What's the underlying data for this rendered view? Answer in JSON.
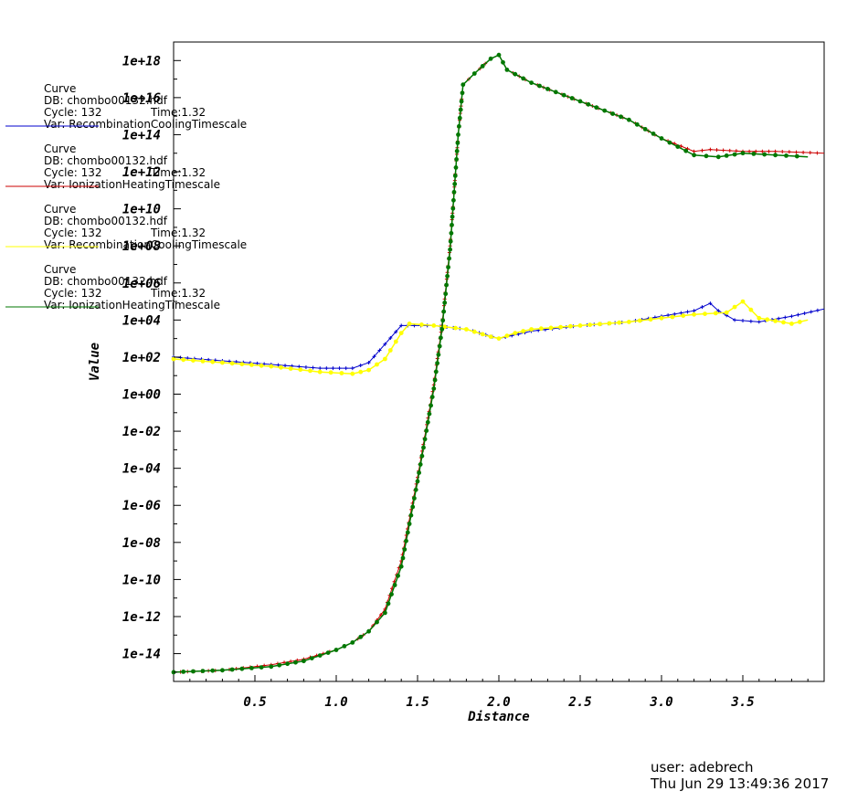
{
  "chart_data": {
    "type": "line",
    "xlabel": "Distance",
    "ylabel": "Value",
    "xlim": [
      0.0,
      4.0
    ],
    "ylim_log10": [
      -15.5,
      19.0
    ],
    "yscale": "log",
    "grid": false,
    "x_tick_labels": [
      "0.5",
      "1.0",
      "1.5",
      "2.0",
      "2.5",
      "3.0",
      "3.5"
    ],
    "y_tick_labels": [
      "1e+18",
      "1e+16",
      "1e+14",
      "1e+12",
      "1e+10",
      "1e+08",
      "1e+06",
      "1e+04",
      "1e+02",
      "1e+00",
      "1e-02",
      "1e-04",
      "1e-06",
      "1e-08",
      "1e-10",
      "1e-12",
      "1e-14"
    ],
    "series": [
      {
        "name": "RecombinationCoolingTimescale",
        "color": "#0000cc",
        "marker": "plus",
        "legend": {
          "title": "Curve",
          "db": "DB: chombo00132.hdf",
          "cycle": "Cycle: 132",
          "time": "Time:1.32",
          "var": "Var: RecombinationCoolingTimescale"
        },
        "x": [
          0.0,
          0.3,
          0.6,
          0.9,
          1.1,
          1.2,
          1.3,
          1.4,
          1.6,
          1.8,
          2.0,
          2.2,
          2.5,
          2.8,
          3.0,
          3.2,
          3.3,
          3.35,
          3.45,
          3.6,
          3.8,
          4.0
        ],
        "y_log10": [
          2.0,
          1.8,
          1.6,
          1.4,
          1.4,
          1.7,
          2.7,
          3.7,
          3.7,
          3.5,
          3.0,
          3.4,
          3.7,
          3.9,
          4.2,
          4.5,
          4.9,
          4.5,
          4.0,
          3.9,
          4.2,
          4.6
        ]
      },
      {
        "name": "IonizationHeatingTimescale",
        "color": "#cc0000",
        "marker": "plus",
        "legend": {
          "title": "Curve",
          "db": "DB: chombo00132.hdf",
          "cycle": "Cycle: 132",
          "time": "Time:1.32",
          "var": "Var: IonizationHeatingTimescale"
        },
        "x": [
          0.0,
          0.3,
          0.6,
          0.8,
          1.0,
          1.1,
          1.2,
          1.3,
          1.4,
          1.5,
          1.6,
          1.65,
          1.7,
          1.75,
          1.78,
          1.85,
          1.95,
          2.0,
          2.05,
          2.2,
          2.5,
          2.8,
          3.0,
          3.2,
          3.3,
          3.5,
          3.7,
          4.0
        ],
        "y_log10": [
          -15.0,
          -14.9,
          -14.6,
          -14.3,
          -13.8,
          -13.4,
          -12.8,
          -11.6,
          -9.0,
          -4.5,
          0.5,
          3.7,
          8.0,
          14.0,
          16.7,
          17.3,
          18.1,
          18.3,
          17.5,
          16.8,
          15.8,
          14.8,
          13.8,
          13.1,
          13.2,
          13.1,
          13.1,
          13.0
        ]
      },
      {
        "name": "RecombinationCoolingTimescale",
        "color": "#ffff00",
        "marker": "dot",
        "legend": {
          "title": "Curve",
          "db": "DB: chombo00132.hdf",
          "cycle": "Cycle: 132",
          "time": "Time:1.32",
          "var": "Var: RecombinationCoolingTimescale"
        },
        "x": [
          0.0,
          0.3,
          0.6,
          0.9,
          1.1,
          1.2,
          1.3,
          1.4,
          1.45,
          1.6,
          1.8,
          1.95,
          2.0,
          2.1,
          2.2,
          2.5,
          2.8,
          3.0,
          3.2,
          3.4,
          3.5,
          3.6,
          3.8,
          3.9
        ],
        "y_log10": [
          1.9,
          1.7,
          1.5,
          1.2,
          1.1,
          1.3,
          1.9,
          3.3,
          3.8,
          3.7,
          3.5,
          3.1,
          3.0,
          3.3,
          3.5,
          3.7,
          3.9,
          4.1,
          4.3,
          4.4,
          5.0,
          4.1,
          3.8,
          4.0
        ]
      },
      {
        "name": "IonizationHeatingTimescale",
        "color": "#007700",
        "marker": "dot",
        "legend": {
          "title": "Curve",
          "db": "DB: chombo00132.hdf",
          "cycle": "Cycle: 132",
          "time": "Time:1.32",
          "var": "Var: IonizationHeatingTimescale"
        },
        "x": [
          0.0,
          0.3,
          0.6,
          0.8,
          1.0,
          1.1,
          1.2,
          1.3,
          1.4,
          1.5,
          1.6,
          1.65,
          1.7,
          1.75,
          1.78,
          1.85,
          1.95,
          2.0,
          2.05,
          2.2,
          2.5,
          2.8,
          3.0,
          3.2,
          3.35,
          3.5,
          3.7,
          3.9
        ],
        "y_log10": [
          -15.0,
          -14.9,
          -14.7,
          -14.4,
          -13.8,
          -13.4,
          -12.8,
          -11.8,
          -9.3,
          -4.7,
          0.3,
          3.5,
          7.8,
          14.0,
          16.7,
          17.3,
          18.1,
          18.3,
          17.5,
          16.8,
          15.8,
          14.8,
          13.8,
          12.9,
          12.8,
          13.0,
          12.9,
          12.8
        ]
      }
    ]
  },
  "footer": {
    "user": "user: adebrech",
    "timestamp": "Thu Jun 29 13:49:36 2017"
  }
}
